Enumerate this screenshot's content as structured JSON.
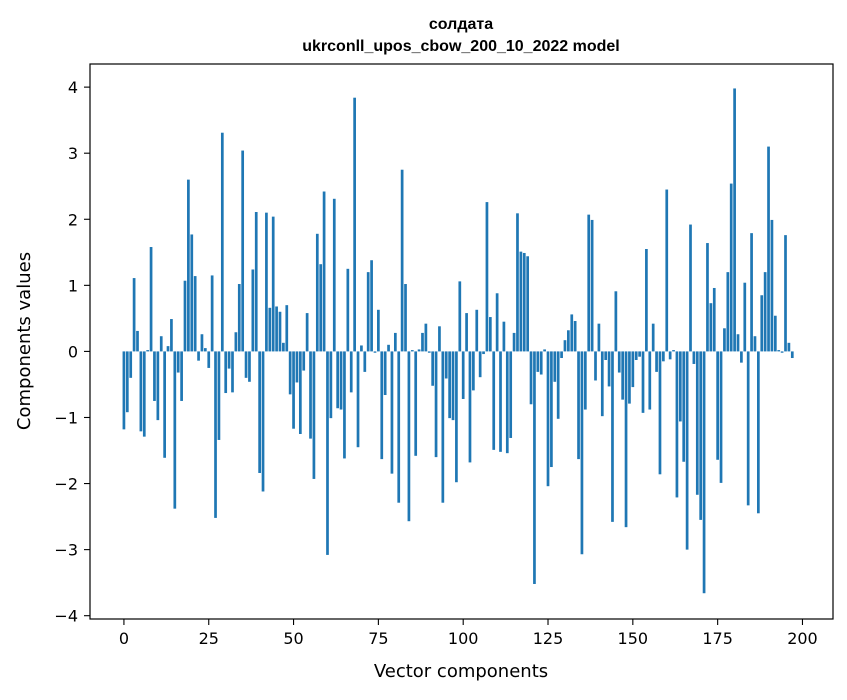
{
  "chart_data": {
    "type": "bar",
    "title": "солдата",
    "subtitle": "ukrconll_upos_cbow_200_10_2022 model",
    "xlabel": "Vector components",
    "ylabel": "Components values",
    "xlim": [
      -10,
      209
    ],
    "ylim": [
      -4.05,
      4.35
    ],
    "xticks": [
      0,
      25,
      50,
      75,
      100,
      125,
      150,
      175,
      200
    ],
    "yticks": [
      -4,
      -3,
      -2,
      -1,
      0,
      1,
      2,
      3,
      4
    ],
    "ytick_labels": [
      "−4",
      "−3",
      "−2",
      "−1",
      "0",
      "1",
      "2",
      "3",
      "4"
    ],
    "grid": false,
    "bar_color": "#1f77b4",
    "series": [
      {
        "values": [
          -1.18,
          -0.92,
          -0.4,
          1.11,
          0.31,
          -1.21,
          -1.29,
          0.02,
          1.58,
          -0.75,
          -1.04,
          0.23,
          -1.61,
          0.08,
          0.49,
          -2.38,
          -0.32,
          -0.75,
          1.07,
          2.6,
          1.77,
          1.14,
          -0.14,
          0.26,
          0.05,
          -0.25,
          1.15,
          -2.52,
          -1.34,
          3.31,
          -0.63,
          -0.26,
          -0.62,
          0.29,
          1.02,
          3.04,
          -0.4,
          -0.46,
          1.24,
          2.11,
          -1.84,
          -2.12,
          2.1,
          0.66,
          2.04,
          0.68,
          0.6,
          0.13,
          0.7,
          -0.65,
          -1.17,
          -0.47,
          -1.25,
          -0.29,
          0.58,
          -1.32,
          -1.93,
          1.78,
          1.32,
          2.42,
          -3.08,
          -1.01,
          2.31,
          -0.86,
          -0.88,
          -1.62,
          1.25,
          -0.62,
          3.84,
          -1.45,
          0.09,
          -0.31,
          1.2,
          1.38,
          -0.02,
          0.63,
          -1.63,
          -0.66,
          0.1,
          -1.85,
          0.28,
          -2.29,
          2.75,
          1.02,
          -2.57,
          0.02,
          -1.58,
          0.03,
          0.28,
          0.42,
          -0.02,
          -0.52,
          -1.6,
          0.38,
          -2.29,
          -0.41,
          -1.01,
          -1.04,
          -1.98,
          1.06,
          -0.72,
          0.58,
          -1.68,
          -0.59,
          0.63,
          -0.39,
          -0.04,
          2.26,
          0.52,
          -1.49,
          0.88,
          -1.52,
          0.45,
          -1.54,
          -1.31,
          0.28,
          2.09,
          1.51,
          1.49,
          1.44,
          -0.8,
          -3.52,
          -0.31,
          -0.35,
          0.03,
          -2.04,
          -1.75,
          -0.46,
          -1.02,
          -0.1,
          0.17,
          0.32,
          0.56,
          0.46,
          -1.63,
          -3.07,
          -0.88,
          2.07,
          1.99,
          -0.44,
          0.42,
          -0.98,
          -0.13,
          -0.53,
          -2.58,
          0.91,
          -0.32,
          -0.73,
          -2.66,
          -0.79,
          -0.54,
          -0.13,
          -0.08,
          -0.93,
          1.55,
          -0.88,
          0.42,
          -0.31,
          -1.86,
          -0.15,
          2.45,
          -0.12,
          0.02,
          -2.21,
          -1.06,
          -1.67,
          -3.0,
          1.92,
          -0.19,
          -2.17,
          -2.55,
          -3.66,
          1.64,
          0.73,
          0.96,
          -1.64,
          -1.99,
          0.35,
          1.2,
          2.54,
          3.98,
          0.26,
          -0.17,
          1.04,
          -2.33,
          1.79,
          0.23,
          -2.45,
          0.85,
          1.2,
          3.1,
          1.99,
          0.54,
          0.02,
          -0.02,
          1.76,
          0.13,
          -0.1
        ]
      }
    ]
  }
}
